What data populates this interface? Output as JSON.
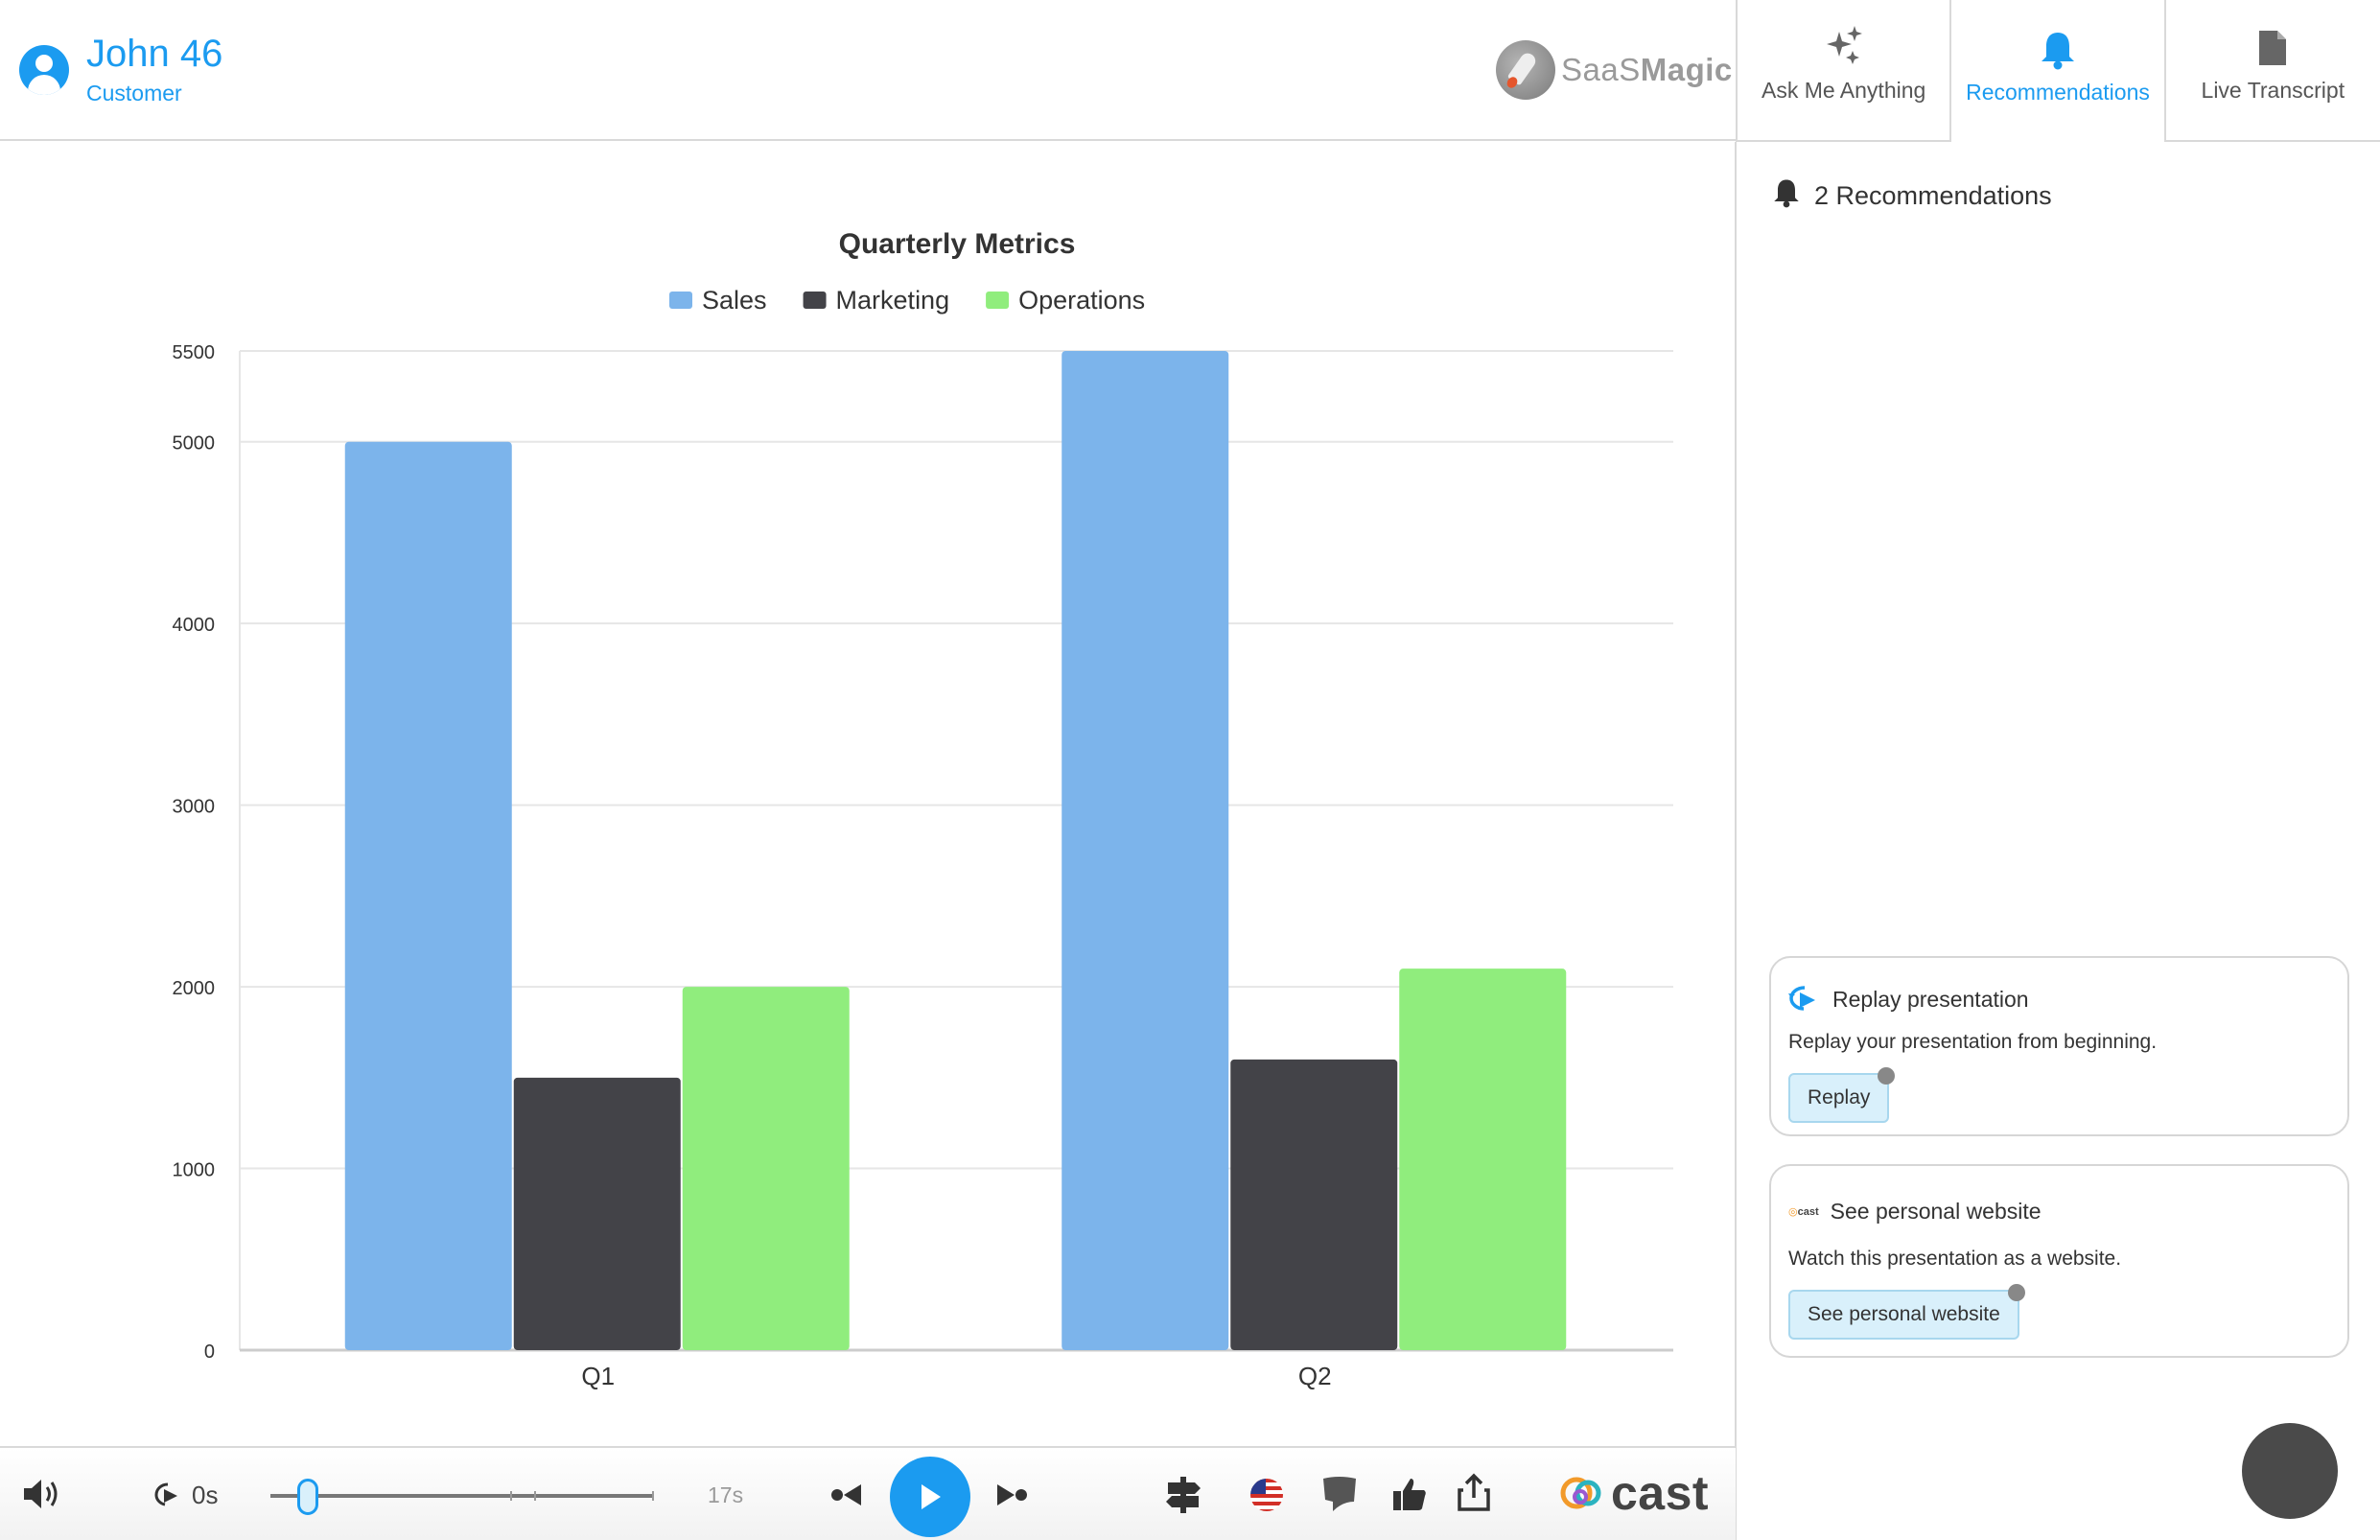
{
  "header": {
    "user_name": "John 46",
    "user_role": "Customer",
    "brand_name_light": "SaaS",
    "brand_name_bold": "Magic"
  },
  "tabs": [
    {
      "label": "Ask Me Anything",
      "icon": "sparkles-icon",
      "active": false
    },
    {
      "label": "Recommendations",
      "icon": "bell-icon",
      "active": true
    },
    {
      "label": "Live Transcript",
      "icon": "document-icon",
      "active": false
    }
  ],
  "recommendations": {
    "count_label": "2 Recommendations",
    "items": [
      {
        "title": "Replay presentation",
        "description": "Replay your presentation from beginning.",
        "button": "Replay",
        "icon": "replay-icon"
      },
      {
        "title": "See personal website",
        "description": "Watch this presentation as a website.",
        "button": "See personal website",
        "icon": "cast-logo-icon"
      }
    ]
  },
  "player": {
    "current_time": "0s",
    "end_time": "17s",
    "progress": 0.1,
    "brand": "cast"
  },
  "colors": {
    "accent": "#1b9bf0",
    "sales": "#7cb4eb",
    "marketing": "#434348",
    "operations": "#90ed7d"
  },
  "chart_data": {
    "type": "bar",
    "title": "Quarterly Metrics",
    "categories": [
      "Q1",
      "Q2"
    ],
    "series": [
      {
        "name": "Sales",
        "values": [
          5000,
          5500
        ]
      },
      {
        "name": "Marketing",
        "values": [
          1500,
          1600
        ]
      },
      {
        "name": "Operations",
        "values": [
          2000,
          2100
        ]
      }
    ],
    "yticks": [
      0,
      1000,
      2000,
      3000,
      4000,
      5000,
      5500
    ],
    "ylim": [
      0,
      5500
    ],
    "legend_position": "top-center",
    "grid": true
  }
}
